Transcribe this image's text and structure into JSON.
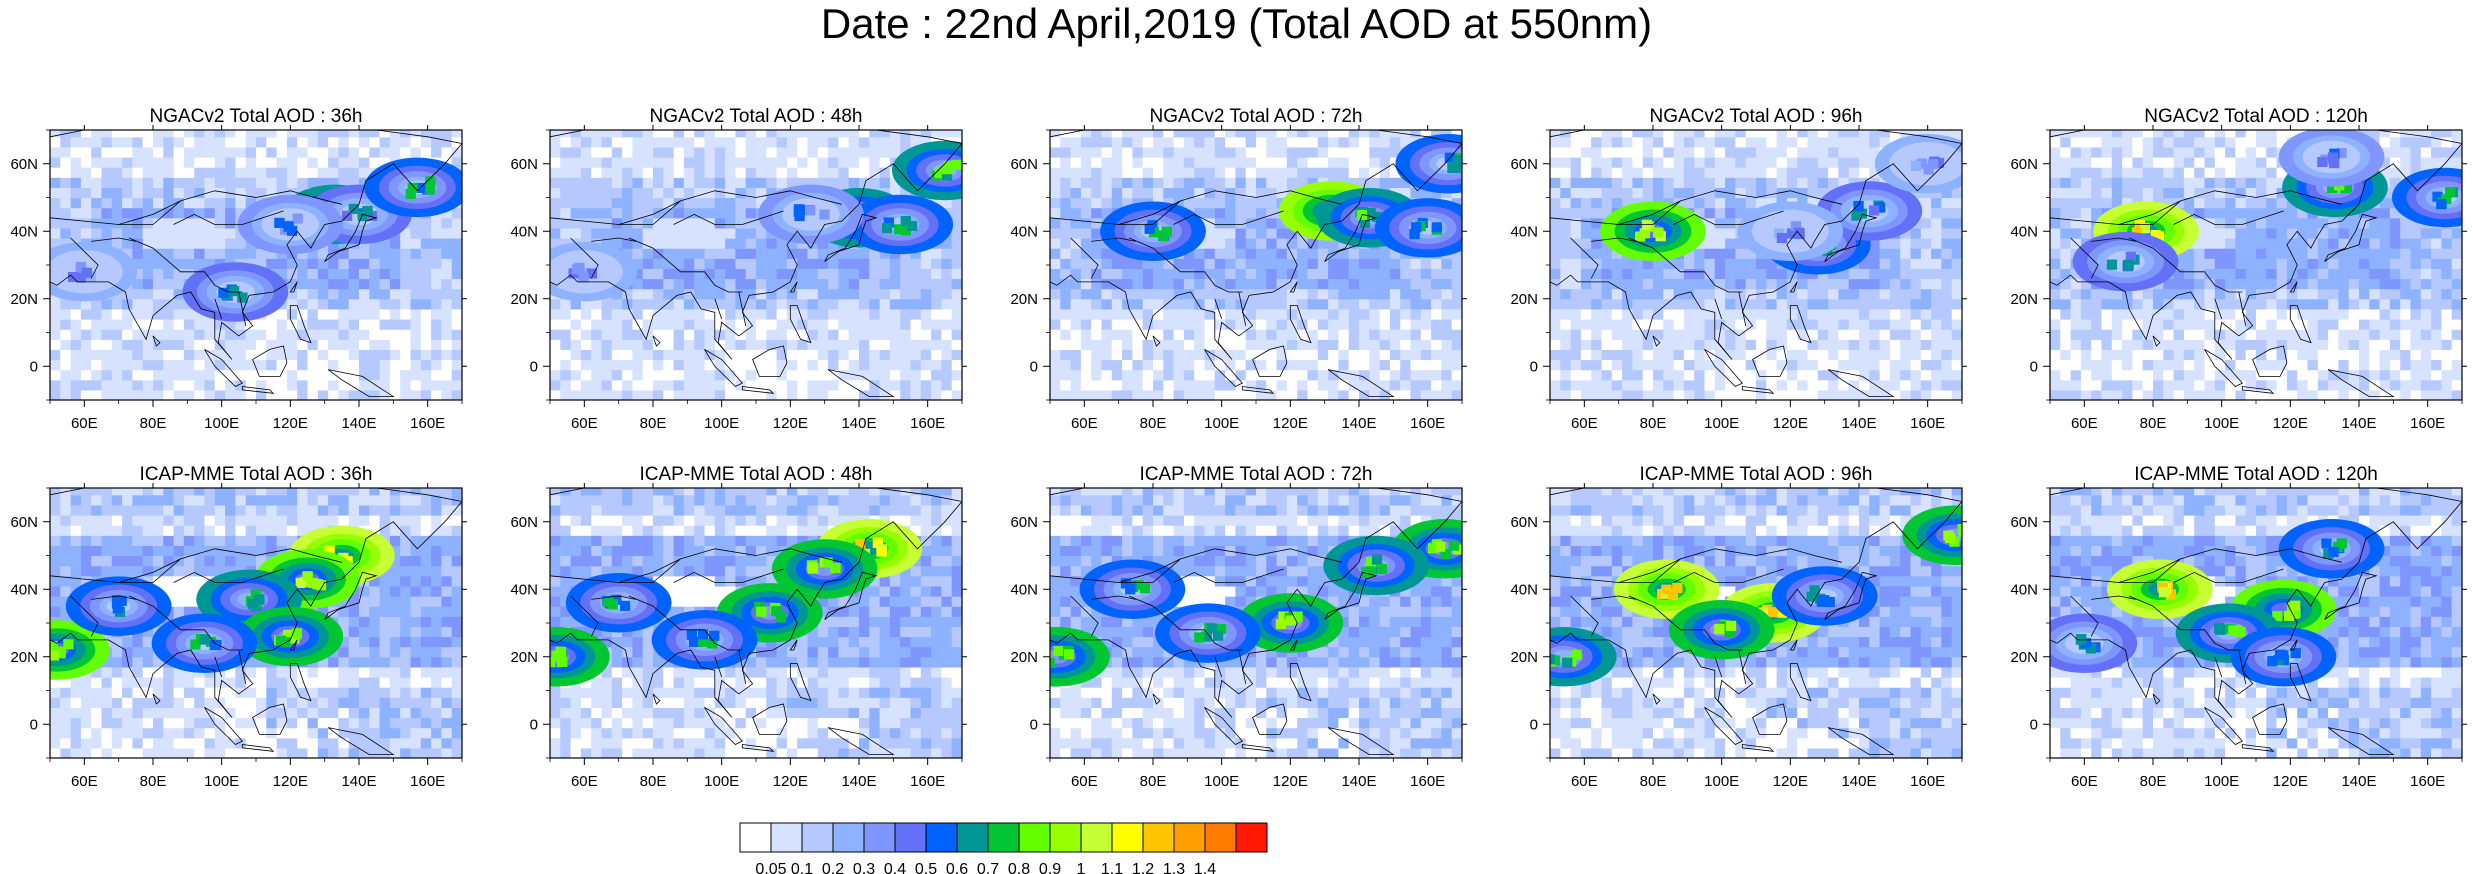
{
  "title": "Date : 22nd April,2019 (Total AOD at 550nm)",
  "chart_data": [
    {
      "type": "heatmap",
      "title": "NGACv2 Total AOD : 36h",
      "lon_ticks": [
        "60E",
        "80E",
        "100E",
        "120E",
        "140E",
        "160E"
      ],
      "lat_ticks": [
        "60N",
        "40N",
        "20N",
        "0"
      ],
      "xlim": [
        50,
        170
      ],
      "ylim": [
        -10,
        70
      ],
      "features": [
        {
          "lon": 133,
          "lat": 45,
          "level": 9
        },
        {
          "lon": 140,
          "lat": 45,
          "level": 7
        },
        {
          "lon": 157,
          "lat": 53,
          "level": 8
        },
        {
          "lon": 104,
          "lat": 22,
          "level": 7
        },
        {
          "lon": 120,
          "lat": 42,
          "level": 6
        },
        {
          "lon": 60,
          "lat": 28,
          "level": 5
        }
      ]
    },
    {
      "type": "heatmap",
      "title": "NGACv2 Total AOD : 48h",
      "lon_ticks": [
        "60E",
        "80E",
        "100E",
        "120E",
        "140E",
        "160E"
      ],
      "lat_ticks": [
        "60N",
        "40N",
        "20N",
        "0"
      ],
      "xlim": [
        50,
        170
      ],
      "ylim": [
        -10,
        70
      ],
      "features": [
        {
          "lon": 140,
          "lat": 44,
          "level": 9
        },
        {
          "lon": 152,
          "lat": 42,
          "level": 8
        },
        {
          "lon": 165,
          "lat": 58,
          "level": 9
        },
        {
          "lon": 126,
          "lat": 45,
          "level": 6
        },
        {
          "lon": 60,
          "lat": 28,
          "level": 5
        }
      ]
    },
    {
      "type": "heatmap",
      "title": "NGACv2 Total AOD : 72h",
      "lon_ticks": [
        "60E",
        "80E",
        "100E",
        "120E",
        "140E",
        "160E"
      ],
      "lat_ticks": [
        "60N",
        "40N",
        "20N",
        "0"
      ],
      "xlim": [
        50,
        170
      ],
      "ylim": [
        -10,
        70
      ],
      "features": [
        {
          "lon": 132,
          "lat": 46,
          "level": 12
        },
        {
          "lon": 143,
          "lat": 44,
          "level": 9
        },
        {
          "lon": 166,
          "lat": 60,
          "level": 8
        },
        {
          "lon": 80,
          "lat": 40,
          "level": 8
        },
        {
          "lon": 160,
          "lat": 41,
          "level": 8
        }
      ]
    },
    {
      "type": "heatmap",
      "title": "NGACv2 Total AOD : 96h",
      "lon_ticks": [
        "60E",
        "80E",
        "100E",
        "120E",
        "140E",
        "160E"
      ],
      "lat_ticks": [
        "60N",
        "40N",
        "20N",
        "0"
      ],
      "xlim": [
        50,
        170
      ],
      "ylim": [
        -10,
        70
      ],
      "features": [
        {
          "lon": 80,
          "lat": 40,
          "level": 11
        },
        {
          "lon": 128,
          "lat": 36,
          "level": 8
        },
        {
          "lon": 143,
          "lat": 46,
          "level": 7
        },
        {
          "lon": 160,
          "lat": 60,
          "level": 5
        },
        {
          "lon": 120,
          "lat": 40,
          "level": 5
        }
      ]
    },
    {
      "type": "heatmap",
      "title": "NGACv2 Total AOD : 120h",
      "lon_ticks": [
        "60E",
        "80E",
        "100E",
        "120E",
        "140E",
        "160E"
      ],
      "lat_ticks": [
        "60N",
        "40N",
        "20N",
        "0"
      ],
      "xlim": [
        50,
        170
      ],
      "ylim": [
        -10,
        70
      ],
      "features": [
        {
          "lon": 78,
          "lat": 40,
          "level": 13
        },
        {
          "lon": 133,
          "lat": 53,
          "level": 9
        },
        {
          "lon": 165,
          "lat": 50,
          "level": 8
        },
        {
          "lon": 72,
          "lat": 31,
          "level": 7
        },
        {
          "lon": 132,
          "lat": 62,
          "level": 6
        }
      ]
    },
    {
      "type": "heatmap",
      "title": "ICAP-MME Total AOD : 36h",
      "lon_ticks": [
        "60E",
        "80E",
        "100E",
        "120E",
        "140E",
        "160E"
      ],
      "lat_ticks": [
        "60N",
        "40N",
        "20N",
        "0"
      ],
      "xlim": [
        50,
        170
      ],
      "ylim": [
        -10,
        70
      ],
      "features": [
        {
          "lon": 135,
          "lat": 50,
          "level": 13
        },
        {
          "lon": 125,
          "lat": 43,
          "level": 11
        },
        {
          "lon": 108,
          "lat": 37,
          "level": 9
        },
        {
          "lon": 120,
          "lat": 26,
          "level": 10
        },
        {
          "lon": 52,
          "lat": 22,
          "level": 11
        },
        {
          "lon": 70,
          "lat": 35,
          "level": 8
        },
        {
          "lon": 95,
          "lat": 24,
          "level": 8
        }
      ]
    },
    {
      "type": "heatmap",
      "title": "ICAP-MME Total AOD : 48h",
      "lon_ticks": [
        "60E",
        "80E",
        "100E",
        "120E",
        "140E",
        "160E"
      ],
      "lat_ticks": [
        "60N",
        "40N",
        "20N",
        "0"
      ],
      "xlim": [
        50,
        170
      ],
      "ylim": [
        -10,
        70
      ],
      "features": [
        {
          "lon": 143,
          "lat": 52,
          "level": 13
        },
        {
          "lon": 130,
          "lat": 46,
          "level": 10
        },
        {
          "lon": 114,
          "lat": 33,
          "level": 10
        },
        {
          "lon": 52,
          "lat": 20,
          "level": 10
        },
        {
          "lon": 70,
          "lat": 36,
          "level": 8
        },
        {
          "lon": 95,
          "lat": 25,
          "level": 8
        }
      ]
    },
    {
      "type": "heatmap",
      "title": "ICAP-MME Total AOD : 72h",
      "lon_ticks": [
        "60E",
        "80E",
        "100E",
        "120E",
        "140E",
        "160E"
      ],
      "lat_ticks": [
        "60N",
        "40N",
        "20N",
        "0"
      ],
      "xlim": [
        50,
        170
      ],
      "ylim": [
        -10,
        70
      ],
      "features": [
        {
          "lon": 165,
          "lat": 52,
          "level": 10
        },
        {
          "lon": 145,
          "lat": 47,
          "level": 9
        },
        {
          "lon": 120,
          "lat": 30,
          "level": 10
        },
        {
          "lon": 52,
          "lat": 20,
          "level": 10
        },
        {
          "lon": 96,
          "lat": 27,
          "level": 8
        },
        {
          "lon": 74,
          "lat": 40,
          "level": 8
        }
      ]
    },
    {
      "type": "heatmap",
      "title": "ICAP-MME Total AOD : 96h",
      "lon_ticks": [
        "60E",
        "80E",
        "100E",
        "120E",
        "140E",
        "160E"
      ],
      "lat_ticks": [
        "60N",
        "40N",
        "20N",
        "0"
      ],
      "xlim": [
        50,
        170
      ],
      "ylim": [
        -10,
        70
      ],
      "features": [
        {
          "lon": 84,
          "lat": 40,
          "level": 13
        },
        {
          "lon": 115,
          "lat": 33,
          "level": 13
        },
        {
          "lon": 100,
          "lat": 28,
          "level": 10
        },
        {
          "lon": 168,
          "lat": 56,
          "level": 10
        },
        {
          "lon": 54,
          "lat": 20,
          "level": 9
        },
        {
          "lon": 130,
          "lat": 38,
          "level": 8
        }
      ]
    },
    {
      "type": "heatmap",
      "title": "ICAP-MME Total AOD : 120h",
      "lon_ticks": [
        "60E",
        "80E",
        "100E",
        "120E",
        "140E",
        "160E"
      ],
      "lat_ticks": [
        "60N",
        "40N",
        "20N",
        "0"
      ],
      "xlim": [
        50,
        170
      ],
      "ylim": [
        -10,
        70
      ],
      "features": [
        {
          "lon": 82,
          "lat": 40,
          "level": 13
        },
        {
          "lon": 118,
          "lat": 34,
          "level": 11
        },
        {
          "lon": 102,
          "lat": 27,
          "level": 9
        },
        {
          "lon": 132,
          "lat": 52,
          "level": 8
        },
        {
          "lon": 60,
          "lat": 24,
          "level": 7
        },
        {
          "lon": 118,
          "lat": 20,
          "level": 8
        }
      ]
    }
  ],
  "colorbar": {
    "labels": [
      "0.05",
      "0.1",
      "0.2",
      "0.3",
      "0.4",
      "0.5",
      "0.6",
      "0.7",
      "0.8",
      "0.9",
      "1",
      "1.1",
      "1.2",
      "1.3",
      "1.4"
    ],
    "colors": [
      "#ffffff",
      "#d6e2ff",
      "#b5c9ff",
      "#8eb2ff",
      "#7f96ff",
      "#6370f8",
      "#0063ff",
      "#009696",
      "#00c633",
      "#63ff00",
      "#96ff00",
      "#c6ff33",
      "#ffff00",
      "#ffc600",
      "#ffa000",
      "#ff7c00",
      "#ff1900"
    ]
  }
}
